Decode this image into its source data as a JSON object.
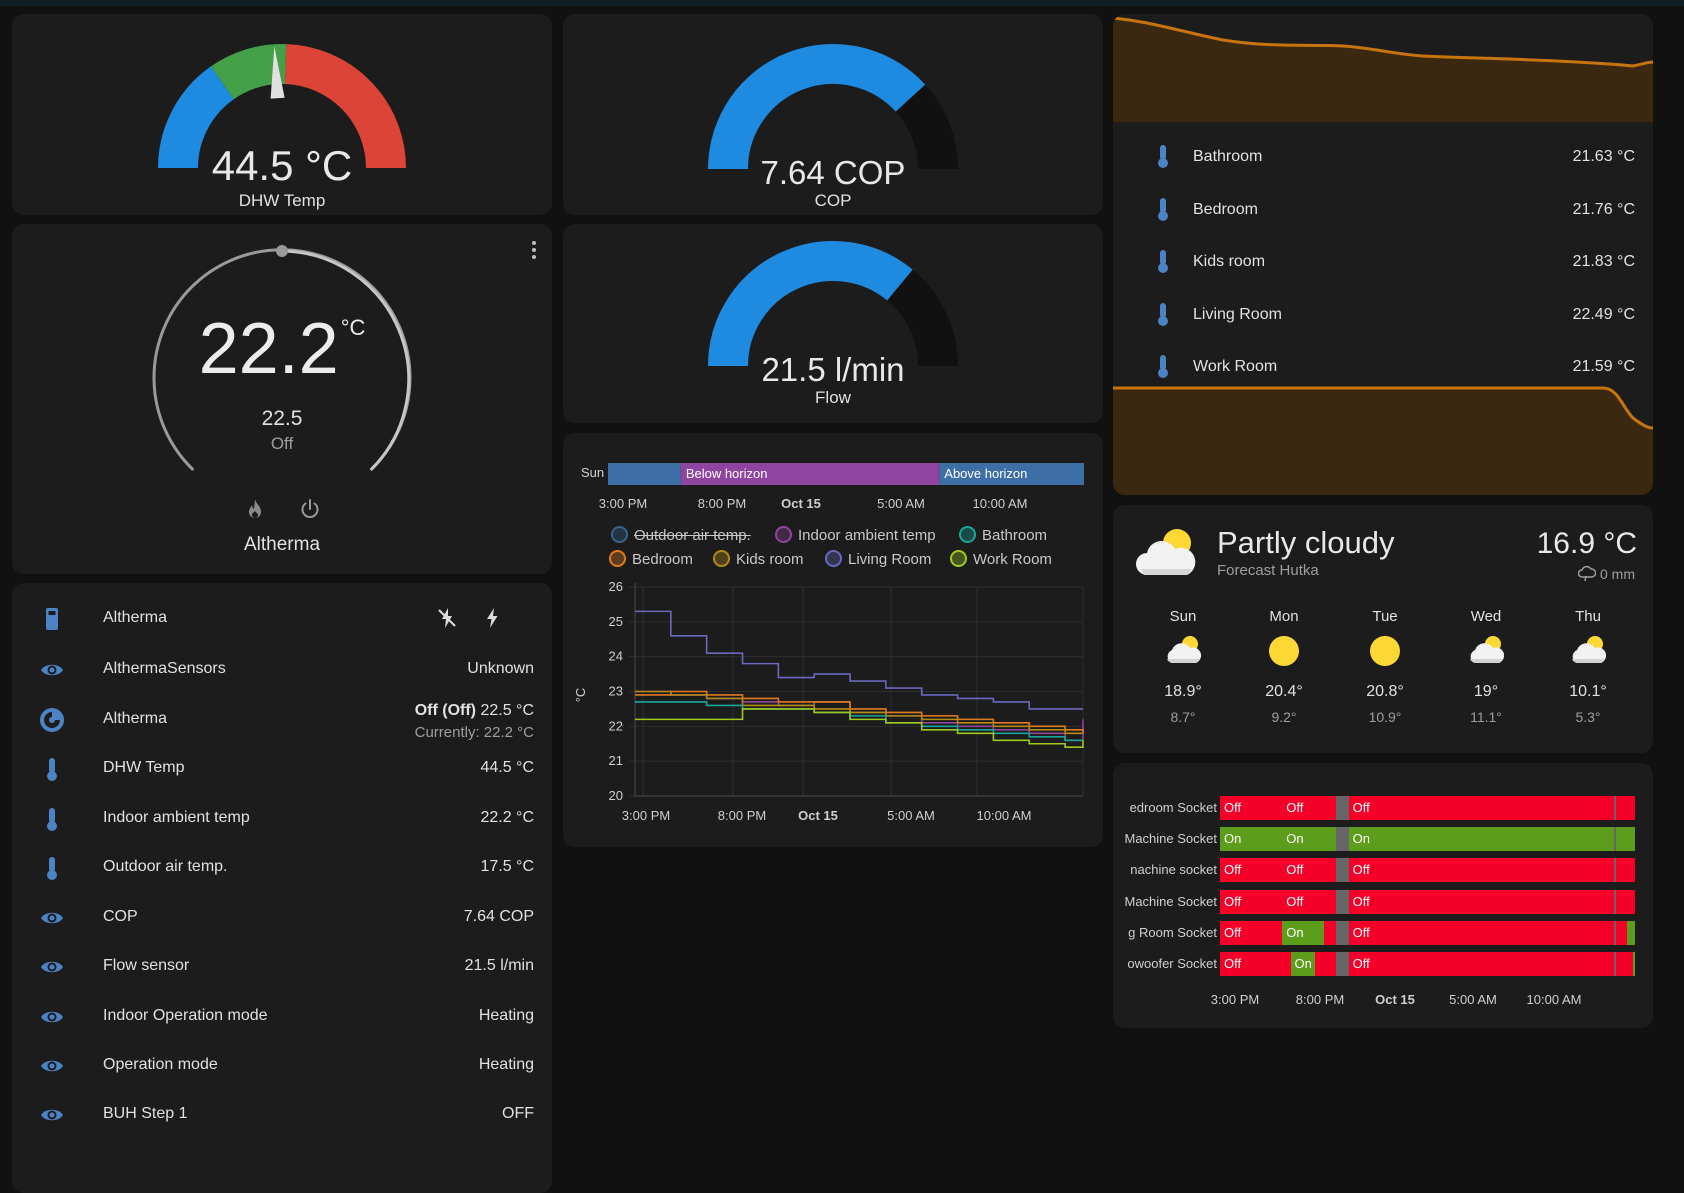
{
  "colors": {
    "accent_blue": "#1f8be0",
    "gauge_green": "#43a047",
    "gauge_red": "#db4437",
    "amber": "#c8740c",
    "on_green": "#5c9e1b",
    "off_red": "#f40028",
    "unavailable_gray": "#666666"
  },
  "dhw_gauge": {
    "value": "44.5 °C",
    "name": "DHW Temp",
    "needle_fraction": 0.48
  },
  "cop_gauge": {
    "value": "7.64 COP",
    "name": "COP",
    "fill_fraction": 0.764
  },
  "flow_gauge": {
    "value": "21.5 l/min",
    "name": "Flow",
    "fill_fraction": 0.72
  },
  "thermostat": {
    "current": "22.2",
    "unit": "°C",
    "target": "22.5",
    "state": "Off",
    "name": "Altherma",
    "icons": [
      "flame-icon",
      "power-icon",
      "more-vert-icon"
    ]
  },
  "entities": [
    {
      "icon": "remote-icon",
      "name": "Altherma",
      "value": ""
    },
    {
      "icon": "eye-icon",
      "name": "AlthermaSensors",
      "value": "Unknown"
    },
    {
      "icon": "thermostat-icon",
      "name": "Altherma",
      "value_bold": "Off (Off)",
      "value": "22.5 °C",
      "value2": "Currently: 22.2 °C"
    },
    {
      "icon": "thermometer-icon",
      "name": "DHW Temp",
      "value": "44.5 °C"
    },
    {
      "icon": "thermometer-icon",
      "name": "Indoor ambient temp",
      "value": "22.2 °C"
    },
    {
      "icon": "thermometer-icon",
      "name": "Outdoor air temp.",
      "value": "17.5 °C"
    },
    {
      "icon": "eye-icon",
      "name": "COP",
      "value": "7.64 COP"
    },
    {
      "icon": "eye-icon",
      "name": "Flow sensor",
      "value": "21.5 l/min"
    },
    {
      "icon": "eye-icon",
      "name": "Indoor Operation mode",
      "value": "Heating"
    },
    {
      "icon": "eye-icon",
      "name": "Operation mode",
      "value": "Heating"
    },
    {
      "icon": "eye-icon",
      "name": "BUH Step 1",
      "value": "OFF"
    }
  ],
  "room_temps": [
    {
      "name": "Bathroom",
      "value": "21.63 °C"
    },
    {
      "name": "Bedroom",
      "value": "21.76 °C"
    },
    {
      "name": "Kids room",
      "value": "21.83 °C"
    },
    {
      "name": "Living Room",
      "value": "22.49 °C"
    },
    {
      "name": "Work Room",
      "value": "21.59 °C"
    }
  ],
  "sun_timeline": {
    "label": "Sun",
    "segments": [
      {
        "label": "",
        "from": 0,
        "to": 0.153,
        "color": "#3d6ea5"
      },
      {
        "label": "Below horizon",
        "from": 0.153,
        "to": 0.696,
        "color": "#8e44a0"
      },
      {
        "label": "Above horizon",
        "from": 0.696,
        "to": 1,
        "color": "#3d6ea5"
      }
    ],
    "ticks": [
      "3:00 PM",
      "8:00 PM",
      "Oct 15",
      "5:00 AM",
      "10:00 AM"
    ]
  },
  "history_chart": {
    "ylabel": "°C",
    "legend": [
      {
        "name": "Outdoor air temp.",
        "color": "#37648f",
        "hidden": true
      },
      {
        "name": "Indoor ambient temp",
        "color": "#8e44a0"
      },
      {
        "name": "Bathroom",
        "color": "#17a79a"
      },
      {
        "name": "Bedroom",
        "color": "#e27a1d"
      },
      {
        "name": "Kids room",
        "color": "#b38a11"
      },
      {
        "name": "Living Room",
        "color": "#6a68c0"
      },
      {
        "name": "Work Room",
        "color": "#a0c81d"
      }
    ],
    "xticks": [
      "3:00 PM",
      "8:00 PM",
      "Oct 15",
      "5:00 AM",
      "10:00 AM"
    ]
  },
  "chart_data": {
    "type": "line",
    "x_hours": [
      0,
      2,
      4,
      6,
      8,
      10,
      12,
      14,
      16,
      18,
      20,
      22,
      24,
      25
    ],
    "ylim": [
      20,
      26
    ],
    "yticks": [
      20,
      21,
      22,
      23,
      24,
      25,
      26
    ],
    "ylabel": "°C",
    "series": [
      {
        "name": "Living Room",
        "values": [
          25.3,
          24.6,
          24.1,
          23.8,
          23.4,
          23.5,
          23.3,
          23.1,
          22.9,
          22.8,
          22.7,
          22.5,
          22.5,
          22.5
        ]
      },
      {
        "name": "Indoor ambient temp",
        "values": [
          23.0,
          22.9,
          22.8,
          22.7,
          22.6,
          22.7,
          22.4,
          22.3,
          22.1,
          22.0,
          21.9,
          21.8,
          21.6,
          22.2
        ]
      },
      {
        "name": "Bedroom",
        "values": [
          22.9,
          23.0,
          22.9,
          22.8,
          22.7,
          22.7,
          22.5,
          22.4,
          22.3,
          22.2,
          22.1,
          22.0,
          21.9,
          21.8
        ]
      },
      {
        "name": "Kids room",
        "values": [
          23.0,
          22.9,
          22.8,
          22.6,
          22.6,
          22.5,
          22.4,
          22.3,
          22.2,
          22.1,
          22.0,
          21.9,
          21.8,
          21.8
        ]
      },
      {
        "name": "Bathroom",
        "values": [
          22.7,
          22.7,
          22.6,
          22.5,
          22.5,
          22.4,
          22.3,
          22.1,
          22.0,
          21.9,
          21.8,
          21.7,
          21.6,
          21.6
        ]
      },
      {
        "name": "Work Room",
        "values": [
          22.2,
          22.2,
          22.2,
          22.5,
          22.5,
          22.4,
          22.2,
          22.1,
          21.9,
          21.8,
          21.6,
          21.5,
          21.4,
          21.6
        ]
      }
    ]
  },
  "weather": {
    "condition": "Partly cloudy",
    "location": "Forecast Hutka",
    "temperature": "16.9 °C",
    "precipitation": "0 mm",
    "forecast": [
      {
        "day": "Sun",
        "icon": "partly-cloudy-icon",
        "high": "18.9°",
        "low": "8.7°"
      },
      {
        "day": "Mon",
        "icon": "sunny-icon",
        "high": "20.4°",
        "low": "9.2°"
      },
      {
        "day": "Tue",
        "icon": "sunny-icon",
        "high": "20.8°",
        "low": "10.9°"
      },
      {
        "day": "Wed",
        "icon": "partly-cloudy-icon",
        "high": "19°",
        "low": "11.1°"
      },
      {
        "day": "Thu",
        "icon": "partly-cloudy-icon",
        "high": "10.1°",
        "low": "5.3°"
      }
    ]
  },
  "sockets": {
    "ticks": [
      "3:00 PM",
      "8:00 PM",
      "Oct 15",
      "5:00 AM",
      "10:00 AM"
    ],
    "rows": [
      {
        "label": "edroom Socket",
        "segments": [
          {
            "state": "Off",
            "from": 0,
            "to": 0.15
          },
          {
            "state": "Off",
            "from": 0.15,
            "to": 0.28
          },
          {
            "state": "",
            "from": 0.28,
            "to": 0.31,
            "gray": true
          },
          {
            "state": "Off",
            "from": 0.31,
            "to": 0.95
          },
          {
            "state": "",
            "from": 0.95,
            "to": 0.955,
            "gray": true
          },
          {
            "state": "",
            "from": 0.955,
            "to": 1
          }
        ]
      },
      {
        "label": "Machine Socket",
        "segments": [
          {
            "state": "On",
            "from": 0,
            "to": 0.15
          },
          {
            "state": "On",
            "from": 0.15,
            "to": 0.28
          },
          {
            "state": "",
            "from": 0.28,
            "to": 0.31,
            "gray": true
          },
          {
            "state": "On",
            "from": 0.31,
            "to": 0.95
          },
          {
            "state": "",
            "from": 0.95,
            "to": 0.955,
            "gray": true
          },
          {
            "state": "",
            "from": 0.955,
            "to": 1
          }
        ]
      },
      {
        "label": "nachine socket",
        "segments": [
          {
            "state": "Off",
            "from": 0,
            "to": 0.15
          },
          {
            "state": "Off",
            "from": 0.15,
            "to": 0.28
          },
          {
            "state": "",
            "from": 0.28,
            "to": 0.31,
            "gray": true
          },
          {
            "state": "Off",
            "from": 0.31,
            "to": 0.95
          },
          {
            "state": "",
            "from": 0.95,
            "to": 0.955,
            "gray": true
          },
          {
            "state": "",
            "from": 0.955,
            "to": 1
          }
        ]
      },
      {
        "label": "Machine Socket",
        "segments": [
          {
            "state": "Off",
            "from": 0,
            "to": 0.15
          },
          {
            "state": "Off",
            "from": 0.15,
            "to": 0.28
          },
          {
            "state": "",
            "from": 0.28,
            "to": 0.31,
            "gray": true
          },
          {
            "state": "Off",
            "from": 0.31,
            "to": 0.95
          },
          {
            "state": "",
            "from": 0.95,
            "to": 0.955,
            "gray": true
          },
          {
            "state": "",
            "from": 0.955,
            "to": 1
          }
        ]
      },
      {
        "label": "g Room Socket",
        "segments": [
          {
            "state": "Off",
            "from": 0,
            "to": 0.15
          },
          {
            "state": "On",
            "from": 0.15,
            "to": 0.25
          },
          {
            "state": "",
            "from": 0.25,
            "to": 0.28
          },
          {
            "state": "",
            "from": 0.28,
            "to": 0.31,
            "gray": true
          },
          {
            "state": "Off",
            "from": 0.31,
            "to": 0.95
          },
          {
            "state": "",
            "from": 0.95,
            "to": 0.955,
            "gray": true
          },
          {
            "state": "",
            "from": 0.955,
            "to": 0.98
          },
          {
            "state": "",
            "from": 0.98,
            "to": 1,
            "on": true
          }
        ]
      },
      {
        "label": "owoofer Socket",
        "segments": [
          {
            "state": "Off",
            "from": 0,
            "to": 0.17
          },
          {
            "state": "On",
            "from": 0.17,
            "to": 0.23
          },
          {
            "state": "",
            "from": 0.23,
            "to": 0.28
          },
          {
            "state": "",
            "from": 0.28,
            "to": 0.31,
            "gray": true
          },
          {
            "state": "Off",
            "from": 0.31,
            "to": 0.95
          },
          {
            "state": "",
            "from": 0.95,
            "to": 0.955,
            "gray": true
          },
          {
            "state": "",
            "from": 0.955,
            "to": 0.995
          },
          {
            "state": "",
            "from": 0.995,
            "to": 1,
            "on": true
          }
        ]
      }
    ]
  }
}
